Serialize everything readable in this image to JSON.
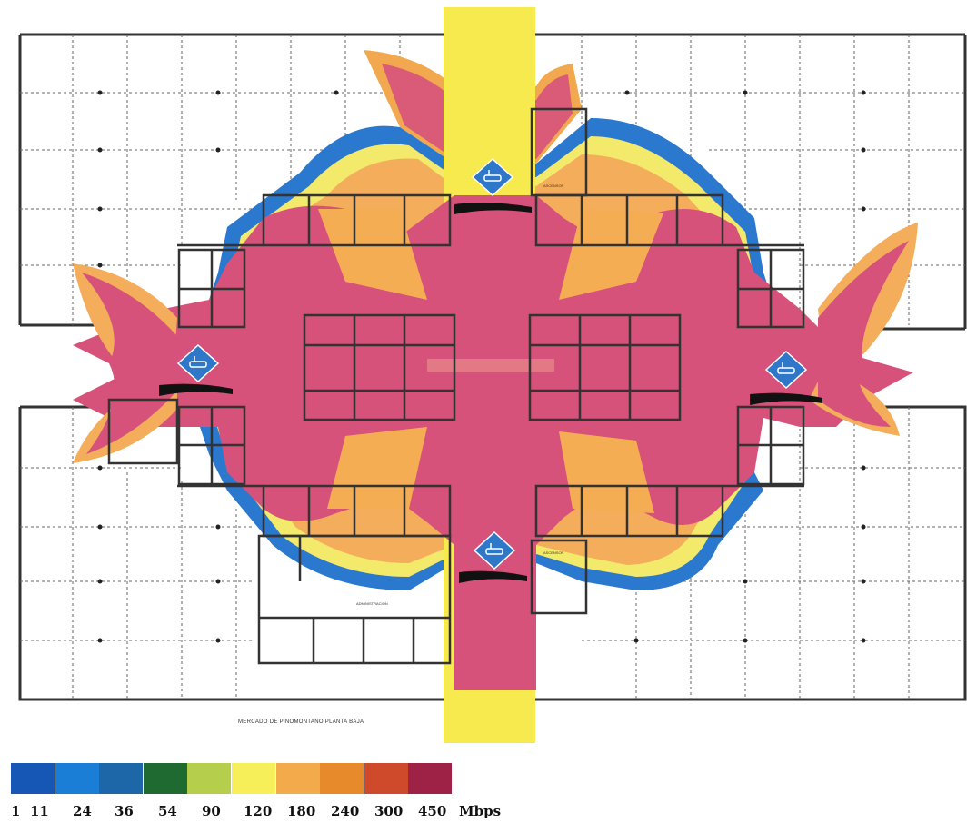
{
  "plan_caption": "MERCADO DE PINOMONTANO PLANTA BAJA",
  "legend": {
    "unit": "Mbps",
    "ticks": [
      "1",
      "11",
      "24",
      "36",
      "54",
      "90",
      "120",
      "180",
      "240",
      "300",
      "450"
    ],
    "colors": [
      "#1656b5",
      "#1a7ed6",
      "#1d66a8",
      "#1f6a30",
      "#b5cf4d",
      "#f6ef5a",
      "#f3aa4a",
      "#e78a2c",
      "#cf4a2b",
      "#9e2246"
    ]
  },
  "access_points": [
    {
      "id": "ap-north",
      "icon": "router-icon"
    },
    {
      "id": "ap-west",
      "icon": "router-icon"
    },
    {
      "id": "ap-east",
      "icon": "router-icon"
    },
    {
      "id": "ap-south",
      "icon": "router-icon"
    }
  ],
  "room_labels": {
    "north_room": "ASCENSOR",
    "south_room": "ASCENSOR",
    "south_office": "ADMINISTRACION"
  }
}
